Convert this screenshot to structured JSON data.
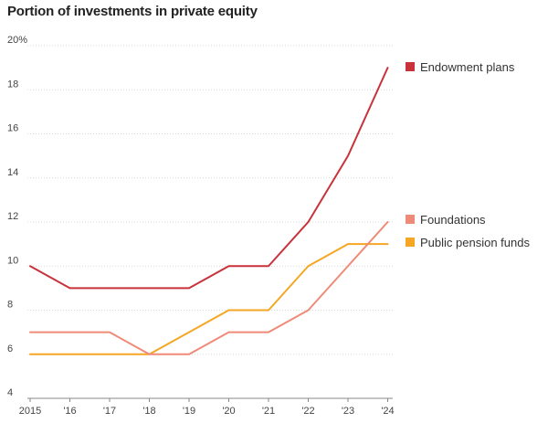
{
  "chart_data": {
    "type": "line",
    "title": "Portion of investments in private equity",
    "xlabel": "",
    "ylabel": "",
    "x": [
      "2015",
      "'16",
      "'17",
      "'18",
      "'19",
      "'20",
      "'21",
      "'22",
      "'23",
      "'24"
    ],
    "y_ticks": [
      "20%",
      "18",
      "16",
      "14",
      "12",
      "10",
      "8",
      "6",
      "4"
    ],
    "ylim": [
      4,
      20
    ],
    "grid": true,
    "legend_placement": "right",
    "series": [
      {
        "name": "Endowment plans",
        "color": "#c8323a",
        "values": [
          10,
          9,
          9,
          9,
          9,
          10,
          10,
          12,
          15,
          19
        ]
      },
      {
        "name": "Foundations",
        "color": "#f08a78",
        "values": [
          7,
          7,
          7,
          6,
          6,
          7,
          7,
          8,
          10,
          12
        ]
      },
      {
        "name": "Public pension funds",
        "color": "#f5a623",
        "values": [
          6,
          6,
          6,
          6,
          7,
          8,
          8,
          10,
          11,
          11
        ]
      }
    ]
  }
}
